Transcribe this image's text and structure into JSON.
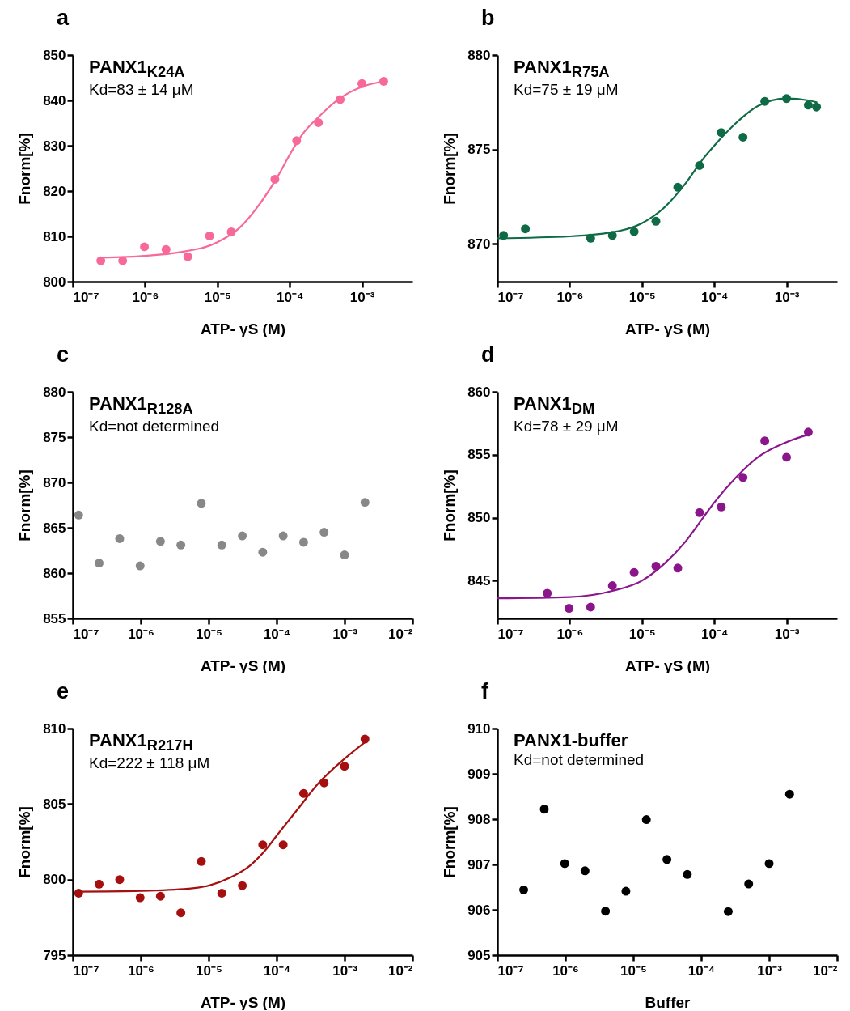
{
  "chart_data": [
    {
      "type": "scatter",
      "title": "a",
      "xlabel": "ATP- γS (M)",
      "ylabel": "Fnorm[%]",
      "annotations": [
        "PANX1$_{K24A}$",
        "Kd=83 ± 14 μM"
      ],
      "log": "x",
      "xlim": [
        1e-07,
        0.005
      ],
      "xticks": [
        {
          "value": 1e-07,
          "label": "10⁻⁷"
        },
        {
          "value": 1e-06,
          "label": "10⁻⁶"
        },
        {
          "value": 1e-05,
          "label": "10⁻⁵"
        },
        {
          "value": 0.0001,
          "label": "10⁻⁴"
        },
        {
          "value": 0.001,
          "label": "10⁻³"
        }
      ],
      "ylim": [
        800,
        850
      ],
      "yticks": [
        800,
        810,
        820,
        830,
        840,
        850
      ],
      "series": [
        {
          "type": "scatter",
          "color": "#f7699a",
          "x": [
            2.44e-07,
            4.9e-07,
            9.8e-07,
            1.95e-06,
            3.9e-06,
            7.8e-06,
            1.56e-05,
            6.25e-05,
            0.000125,
            0.00025,
            0.0005,
            0.001,
            0.002
          ],
          "values": [
            804.6,
            804.6,
            807.7,
            807.1,
            805.5,
            810.1,
            811.0,
            822.6,
            831.1,
            835.1,
            840.2,
            843.7,
            844.2
          ]
        },
        {
          "type": "line",
          "color": "#f7699a",
          "x": [
            2.44e-07,
            1e-06,
            3e-06,
            1e-05,
            2e-05,
            4e-05,
            7e-05,
            0.0001,
            0.00015,
            0.00025,
            0.0005,
            0.001,
            0.002
          ],
          "values": [
            805.3,
            805.7,
            806.5,
            808.7,
            811.8,
            817.5,
            823.5,
            828,
            832.5,
            836.3,
            840.5,
            843.0,
            844.2
          ]
        }
      ]
    },
    {
      "type": "scatter",
      "title": "b",
      "xlabel": "ATP- γS (M)",
      "ylabel": "Fnorm[%]",
      "annotations": [
        "PANX1$_{R75A}$",
        "Kd=75 ± 19 μM"
      ],
      "log": "x",
      "xlim": [
        1e-07,
        0.005
      ],
      "xticks": [
        {
          "value": 1e-07,
          "label": "10⁻⁷"
        },
        {
          "value": 1e-06,
          "label": "10⁻⁶"
        },
        {
          "value": 1e-05,
          "label": "10⁻⁵"
        },
        {
          "value": 0.0001,
          "label": "10⁻⁴"
        },
        {
          "value": 0.001,
          "label": "10⁻³"
        }
      ],
      "ylim": [
        868,
        880
      ],
      "yticks": [
        870,
        875,
        880
      ],
      "series": [
        {
          "type": "scatter",
          "color": "#0e6b45",
          "x": [
            1.22e-07,
            2.44e-07,
            1.95e-06,
            3.9e-06,
            7.8e-06,
            1.56e-05,
            3.13e-05,
            6.25e-05,
            0.000125,
            0.00025,
            0.0005,
            0.001,
            0.002,
            0.0026
          ],
          "values": [
            870.45,
            870.8,
            870.3,
            870.45,
            870.65,
            871.2,
            873.0,
            874.15,
            875.9,
            875.65,
            877.55,
            877.7,
            877.35,
            877.25
          ]
        },
        {
          "type": "line",
          "color": "#0e6b45",
          "x": [
            1e-07,
            1e-06,
            5e-06,
            1e-05,
            2e-05,
            4e-05,
            7e-05,
            0.0001,
            0.0002,
            0.0004,
            0.001,
            0.002,
            0.0026
          ],
          "values": [
            870.3,
            870.4,
            870.7,
            871.1,
            871.9,
            873.2,
            874.5,
            875.2,
            876.4,
            877.3,
            877.7,
            877.6,
            877.5
          ]
        }
      ]
    },
    {
      "type": "scatter",
      "title": "c",
      "xlabel": "ATP- γS (M)",
      "ylabel": "Fnorm[%]",
      "annotations": [
        "PANX1$_{R128A}$",
        "Kd=not determined"
      ],
      "log": "x",
      "xlim": [
        1e-07,
        0.01
      ],
      "xticks": [
        {
          "value": 1e-07,
          "label": "10⁻⁷"
        },
        {
          "value": 1e-06,
          "label": "10⁻⁶"
        },
        {
          "value": 1e-05,
          "label": "10⁻⁵"
        },
        {
          "value": 0.0001,
          "label": "10⁻⁴"
        },
        {
          "value": 0.001,
          "label": "10⁻³"
        },
        {
          "value": 0.01,
          "label": "10⁻²"
        }
      ],
      "ylim": [
        855,
        880
      ],
      "yticks": [
        855,
        860,
        865,
        870,
        875,
        880
      ],
      "series": [
        {
          "type": "scatter",
          "color": "#888888",
          "x": [
            1.22e-07,
            2.44e-07,
            4.9e-07,
            9.8e-07,
            1.95e-06,
            3.9e-06,
            7.8e-06,
            1.56e-05,
            3.13e-05,
            6.25e-05,
            0.000125,
            0.00025,
            0.0005,
            0.001,
            0.002
          ],
          "values": [
            866.4,
            861.1,
            863.8,
            860.8,
            863.5,
            863.1,
            867.7,
            863.1,
            864.1,
            862.3,
            864.1,
            863.4,
            864.5,
            862.0,
            867.8
          ]
        }
      ]
    },
    {
      "type": "scatter",
      "title": "d",
      "xlabel": "ATP- γS (M)",
      "ylabel": "Fnorm[%]",
      "annotations": [
        "PANX1$_{DM}$",
        "Kd=78 ± 29 μM"
      ],
      "log": "x",
      "xlim": [
        1e-07,
        0.005
      ],
      "xticks": [
        {
          "value": 1e-07,
          "label": "10⁻⁷"
        },
        {
          "value": 1e-06,
          "label": "10⁻⁶"
        },
        {
          "value": 1e-05,
          "label": "10⁻⁵"
        },
        {
          "value": 0.0001,
          "label": "10⁻⁴"
        },
        {
          "value": 0.001,
          "label": "10⁻³"
        }
      ],
      "ylim": [
        842,
        860
      ],
      "yticks": [
        845,
        850,
        855,
        860
      ],
      "series": [
        {
          "type": "scatter",
          "color": "#8b168b",
          "x": [
            4.9e-07,
            9.8e-07,
            1.95e-06,
            3.9e-06,
            7.8e-06,
            1.56e-05,
            3.13e-05,
            6.25e-05,
            0.000125,
            0.00025,
            0.0005,
            0.001,
            0.002
          ],
          "values": [
            844.0,
            842.8,
            842.9,
            844.6,
            845.65,
            846.15,
            846.0,
            850.4,
            850.85,
            853.2,
            856.1,
            854.8,
            856.8
          ]
        },
        {
          "type": "line",
          "color": "#8b168b",
          "x": [
            1e-07,
            1e-06,
            4e-06,
            1e-05,
            2e-05,
            4e-05,
            7e-05,
            0.0001,
            0.0002,
            0.0004,
            0.001,
            0.002
          ],
          "values": [
            843.6,
            843.7,
            844.2,
            845.0,
            846.3,
            848.1,
            850.0,
            851.2,
            853.2,
            854.8,
            856.0,
            856.6
          ]
        }
      ]
    },
    {
      "type": "scatter",
      "title": "e",
      "xlabel": "ATP- γS (M)",
      "ylabel": "Fnorm[%]",
      "annotations": [
        "PANX1$_{R217H}$",
        "Kd=222 ± 118 μM"
      ],
      "log": "x",
      "xlim": [
        1e-07,
        0.01
      ],
      "xticks": [
        {
          "value": 1e-07,
          "label": "10⁻⁷"
        },
        {
          "value": 1e-06,
          "label": "10⁻⁶"
        },
        {
          "value": 1e-05,
          "label": "10⁻⁵"
        },
        {
          "value": 0.0001,
          "label": "10⁻⁴"
        },
        {
          "value": 0.001,
          "label": "10⁻³"
        },
        {
          "value": 0.01,
          "label": "10⁻²"
        }
      ],
      "ylim": [
        795,
        810
      ],
      "yticks": [
        795,
        800,
        805,
        810
      ],
      "series": [
        {
          "type": "scatter",
          "color": "#a50f0f",
          "x": [
            1.22e-07,
            2.44e-07,
            4.9e-07,
            9.8e-07,
            1.95e-06,
            3.9e-06,
            7.8e-06,
            1.56e-05,
            3.13e-05,
            6.25e-05,
            0.000125,
            0.00025,
            0.0005,
            0.001,
            0.002
          ],
          "values": [
            799.1,
            799.7,
            800.0,
            798.8,
            798.9,
            797.8,
            801.2,
            799.1,
            799.6,
            802.3,
            802.3,
            805.7,
            806.4,
            807.5,
            809.3
          ]
        },
        {
          "type": "line",
          "color": "#a50f0f",
          "x": [
            1.22e-07,
            1e-06,
            5e-06,
            1e-05,
            2e-05,
            4e-05,
            7e-05,
            0.0001,
            0.0002,
            0.0004,
            0.001,
            0.002
          ],
          "values": [
            799.2,
            799.25,
            799.4,
            799.6,
            800.1,
            800.9,
            802.0,
            802.9,
            804.6,
            806.3,
            808.0,
            809.1
          ]
        }
      ]
    },
    {
      "type": "scatter",
      "title": "f",
      "xlabel": "Buffer",
      "ylabel": "Fnorm[%]",
      "annotations": [
        "PANX1-buffer",
        "Kd=not determined"
      ],
      "log": "x",
      "xlim": [
        1e-07,
        0.01
      ],
      "xticks": [
        {
          "value": 1e-07,
          "label": "10⁻⁷"
        },
        {
          "value": 1e-06,
          "label": "10⁻⁶"
        },
        {
          "value": 1e-05,
          "label": "10⁻⁵"
        },
        {
          "value": 0.0001,
          "label": "10⁻⁴"
        },
        {
          "value": 0.001,
          "label": "10⁻³"
        },
        {
          "value": 0.01,
          "label": "10⁻²"
        }
      ],
      "ylim": [
        905,
        910
      ],
      "yticks": [
        905,
        906,
        907,
        908,
        909,
        910
      ],
      "series": [
        {
          "type": "scatter",
          "color": "#000000",
          "x": [
            2.44e-07,
            4.9e-07,
            9.8e-07,
            1.95e-06,
            3.9e-06,
            7.8e-06,
            1.56e-05,
            3.13e-05,
            6.25e-05,
            0.00025,
            0.0005,
            0.001,
            0.002
          ],
          "values": [
            906.44,
            908.22,
            907.02,
            906.86,
            905.97,
            906.41,
            907.99,
            907.11,
            906.78,
            905.96,
            906.57,
            907.02,
            908.55
          ]
        }
      ]
    }
  ]
}
